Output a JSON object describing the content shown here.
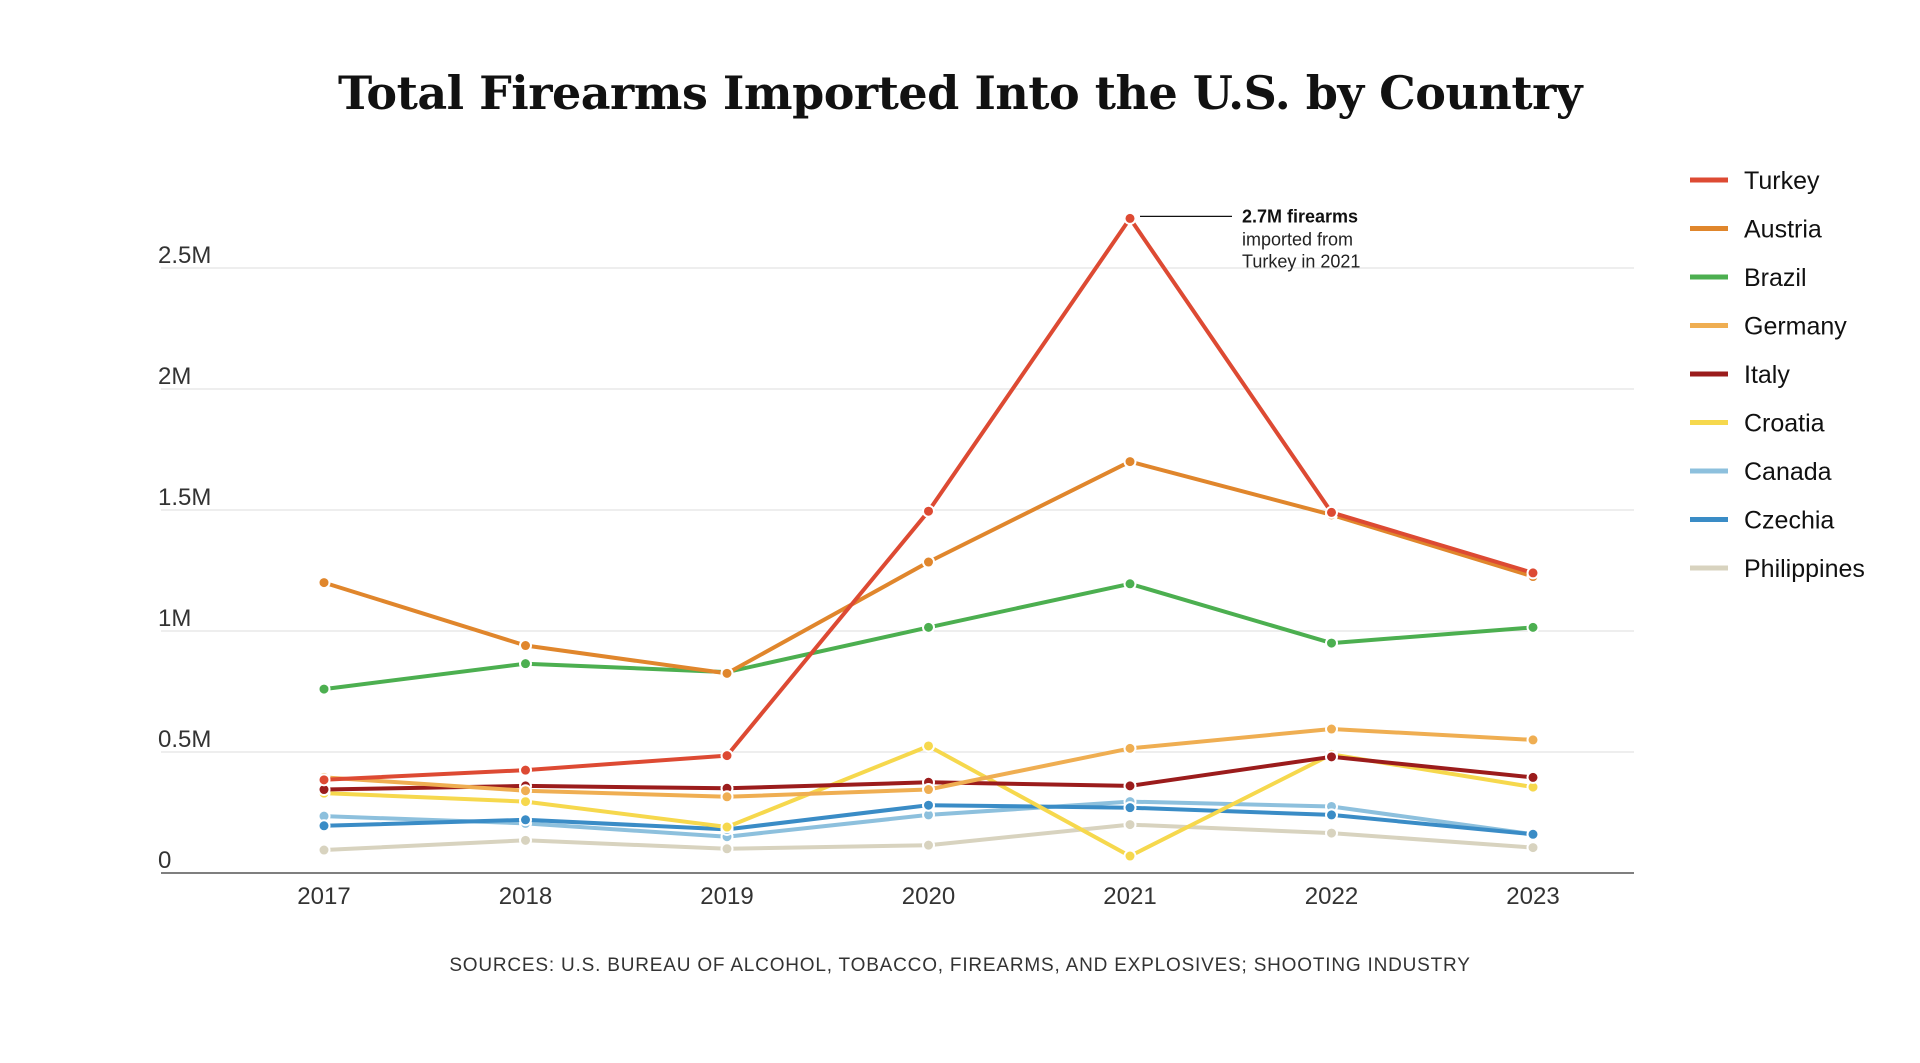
{
  "chart_data": {
    "type": "line",
    "title": "Total Firearms Imported Into the U.S. by Country",
    "x": [
      "2017",
      "2018",
      "2019",
      "2020",
      "2021",
      "2022",
      "2023"
    ],
    "xlabel": "",
    "ylabel": "",
    "ylim": [
      0,
      2500000
    ],
    "yticks": [
      0,
      500000,
      1000000,
      1500000,
      2000000,
      2500000
    ],
    "ytick_labels": [
      "0",
      "0.5M",
      "1M",
      "1.5M",
      "2M",
      "2.5M"
    ],
    "grid": true,
    "legend_position": "right",
    "series": [
      {
        "name": "Philippines",
        "color": "#d8d3bf",
        "values": [
          95000,
          135000,
          100000,
          115000,
          200000,
          165000,
          105000
        ]
      },
      {
        "name": "Canada",
        "color": "#8dc0dd",
        "values": [
          235000,
          205000,
          150000,
          240000,
          295000,
          275000,
          160000
        ]
      },
      {
        "name": "Czechia",
        "color": "#3a8cc6",
        "values": [
          195000,
          220000,
          180000,
          280000,
          270000,
          240000,
          160000
        ]
      },
      {
        "name": "Croatia",
        "color": "#f6d84d",
        "values": [
          330000,
          295000,
          190000,
          525000,
          70000,
          490000,
          355000
        ]
      },
      {
        "name": "Italy",
        "color": "#9b1c1c",
        "values": [
          345000,
          360000,
          350000,
          375000,
          360000,
          480000,
          395000
        ]
      },
      {
        "name": "Germany",
        "color": "#efae52",
        "values": [
          395000,
          340000,
          315000,
          345000,
          515000,
          595000,
          550000
        ]
      },
      {
        "name": "Brazil",
        "color": "#4caf50",
        "values": [
          760000,
          865000,
          830000,
          1015000,
          1195000,
          950000,
          1015000
        ]
      },
      {
        "name": "Austria",
        "color": "#e0862c",
        "values": [
          1200000,
          940000,
          825000,
          1285000,
          1700000,
          1480000,
          1225000
        ]
      },
      {
        "name": "Turkey",
        "color": "#dd4a33",
        "values": [
          385000,
          425000,
          485000,
          1495000,
          2705000,
          1490000,
          1240000
        ]
      }
    ],
    "legend": [
      "Turkey",
      "Austria",
      "Brazil",
      "Germany",
      "Italy",
      "Croatia",
      "Canada",
      "Czechia",
      "Philippines"
    ],
    "annotation": {
      "series": "Turkey",
      "x": "2021",
      "bold": "2.7M firearms",
      "lines": [
        "imported from",
        "Turkey in 2021"
      ]
    }
  },
  "source": "SOURCES: U.S. BUREAU OF ALCOHOL, TOBACCO, FIREARMS, AND EXPLOSIVES; SHOOTING INDUSTRY"
}
